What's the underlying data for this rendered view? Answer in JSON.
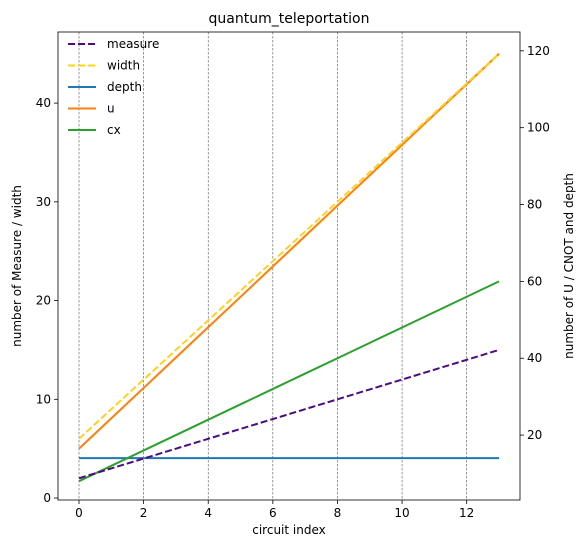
{
  "chart_data": {
    "type": "line",
    "title": "quantum_teleportation",
    "xlabel": "circuit index",
    "ylabel_left": "number of Measure / width",
    "ylabel_right": "number of U / CNOT and depth",
    "xlim": [
      -0.65,
      13.65
    ],
    "ylim_left": [
      -0.2,
      47.2
    ],
    "ylim_right": [
      3.1,
      124.9
    ],
    "xticks": [
      0,
      2,
      4,
      6,
      8,
      10,
      12
    ],
    "yticks_left": [
      0,
      10,
      20,
      30,
      40
    ],
    "yticks_right": [
      20,
      40,
      60,
      80,
      100,
      120
    ],
    "grid": "vertical dashed at x ticks",
    "legend_position": "upper-left",
    "x": [
      0,
      1,
      2,
      3,
      4,
      5,
      6,
      7,
      8,
      9,
      10,
      11,
      12,
      13
    ],
    "series": [
      {
        "name": "measure",
        "axis": "left",
        "style": "dashed",
        "color": "#4b0c82",
        "values": [
          2,
          3,
          4,
          5,
          6,
          7,
          8,
          9,
          10,
          11,
          12,
          13,
          14,
          15
        ]
      },
      {
        "name": "width",
        "axis": "left",
        "style": "dashed",
        "color": "#ffd21f",
        "values": [
          6,
          9,
          12,
          15,
          18,
          21,
          24,
          27,
          30,
          33,
          36,
          39,
          42,
          45
        ]
      },
      {
        "name": "depth",
        "axis": "right",
        "style": "solid",
        "color": "#1f77b4",
        "values": [
          14,
          14,
          14,
          14,
          14,
          14,
          14,
          14,
          14,
          14,
          14,
          14,
          14,
          14
        ]
      },
      {
        "name": "u",
        "axis": "left",
        "style": "solid",
        "color": "#ff7f0e",
        "values": [
          5,
          8.08,
          11.15,
          14.23,
          17.31,
          20.38,
          23.46,
          26.54,
          29.62,
          32.69,
          35.77,
          38.85,
          41.92,
          45
        ]
      },
      {
        "name": "cx",
        "axis": "right",
        "style": "solid",
        "color": "#2ca02c",
        "values": [
          8,
          12,
          16,
          20,
          24,
          28,
          32,
          36,
          40,
          44,
          48,
          52,
          56,
          60
        ]
      }
    ]
  }
}
